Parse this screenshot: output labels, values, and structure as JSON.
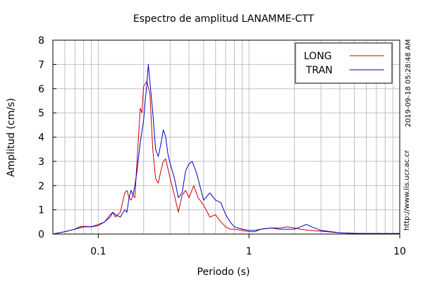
{
  "chart_data": {
    "type": "line",
    "title": "Espectro de amplitud LANAMME-CTT",
    "xlabel": "Periodo (s)",
    "ylabel": "Amplitud (cm/s)",
    "x_scale": "log",
    "xlim": [
      0.05,
      10
    ],
    "ylim": [
      0,
      8
    ],
    "x_ticks": [
      0.1,
      1,
      10
    ],
    "x_tick_labels": [
      "0.1",
      "1",
      "10"
    ],
    "y_ticks": [
      0,
      1,
      2,
      3,
      4,
      5,
      6,
      7,
      8
    ],
    "y_tick_labels": [
      "0",
      "1",
      "2",
      "3",
      "4",
      "5",
      "6",
      "7",
      "8"
    ],
    "grid": true,
    "legend_position": "top-right",
    "timestamp": "2019-09-18 05:28:48 AM",
    "source": "http://www.lis.ucr.ac.cr",
    "series": [
      {
        "name": "LONG",
        "color": "#cc0000",
        "x": [
          0.05,
          0.055,
          0.06,
          0.065,
          0.07,
          0.075,
          0.08,
          0.09,
          0.1,
          0.11,
          0.12,
          0.125,
          0.13,
          0.14,
          0.15,
          0.155,
          0.16,
          0.165,
          0.17,
          0.175,
          0.18,
          0.19,
          0.195,
          0.2,
          0.21,
          0.22,
          0.23,
          0.24,
          0.25,
          0.26,
          0.27,
          0.28,
          0.29,
          0.3,
          0.32,
          0.34,
          0.36,
          0.38,
          0.4,
          0.43,
          0.46,
          0.5,
          0.55,
          0.6,
          0.65,
          0.7,
          0.75,
          0.8,
          0.9,
          1.0,
          1.1,
          1.2,
          1.4,
          1.6,
          1.8,
          2.0,
          2.2,
          2.5,
          3.0,
          3.5,
          4.0,
          5.0,
          6.0,
          8.0,
          10.0
        ],
        "values": [
          0.0,
          0.05,
          0.1,
          0.15,
          0.2,
          0.3,
          0.32,
          0.3,
          0.4,
          0.5,
          0.8,
          0.9,
          0.7,
          0.9,
          1.7,
          1.8,
          1.5,
          1.4,
          1.6,
          1.5,
          2.8,
          5.2,
          5.0,
          6.1,
          6.3,
          5.8,
          3.5,
          2.3,
          2.1,
          2.6,
          3.0,
          3.1,
          2.7,
          2.3,
          1.6,
          0.9,
          1.6,
          1.8,
          1.5,
          2.0,
          1.5,
          1.2,
          0.7,
          0.8,
          0.5,
          0.3,
          0.2,
          0.2,
          0.15,
          0.1,
          0.1,
          0.2,
          0.25,
          0.25,
          0.3,
          0.25,
          0.2,
          0.15,
          0.12,
          0.08,
          0.05,
          0.03,
          0.02,
          0.02,
          0.02
        ]
      },
      {
        "name": "TRAN",
        "color": "#0000cc",
        "x": [
          0.05,
          0.055,
          0.06,
          0.065,
          0.07,
          0.075,
          0.08,
          0.09,
          0.1,
          0.11,
          0.12,
          0.125,
          0.13,
          0.14,
          0.15,
          0.155,
          0.16,
          0.165,
          0.17,
          0.175,
          0.18,
          0.19,
          0.2,
          0.205,
          0.21,
          0.215,
          0.22,
          0.23,
          0.24,
          0.25,
          0.26,
          0.27,
          0.28,
          0.29,
          0.3,
          0.32,
          0.34,
          0.36,
          0.38,
          0.4,
          0.42,
          0.45,
          0.5,
          0.55,
          0.6,
          0.65,
          0.7,
          0.75,
          0.8,
          0.9,
          1.0,
          1.1,
          1.2,
          1.4,
          1.6,
          1.8,
          2.0,
          2.2,
          2.4,
          2.6,
          3.0,
          3.5,
          4.0,
          5.0,
          6.0,
          8.0,
          10.0
        ],
        "values": [
          0.0,
          0.05,
          0.1,
          0.15,
          0.2,
          0.25,
          0.3,
          0.3,
          0.35,
          0.5,
          0.7,
          0.9,
          0.8,
          0.7,
          1.0,
          0.9,
          1.5,
          1.8,
          1.6,
          2.0,
          2.5,
          3.8,
          4.7,
          5.5,
          6.2,
          7.0,
          6.3,
          5.0,
          3.5,
          3.2,
          3.7,
          4.3,
          4.0,
          3.3,
          2.9,
          2.3,
          1.5,
          1.7,
          2.6,
          2.9,
          3.0,
          2.5,
          1.4,
          1.7,
          1.4,
          1.3,
          0.8,
          0.5,
          0.3,
          0.2,
          0.15,
          0.15,
          0.2,
          0.25,
          0.2,
          0.2,
          0.2,
          0.3,
          0.4,
          0.3,
          0.15,
          0.1,
          0.05,
          0.03,
          0.02,
          0.02,
          0.02
        ]
      }
    ]
  }
}
